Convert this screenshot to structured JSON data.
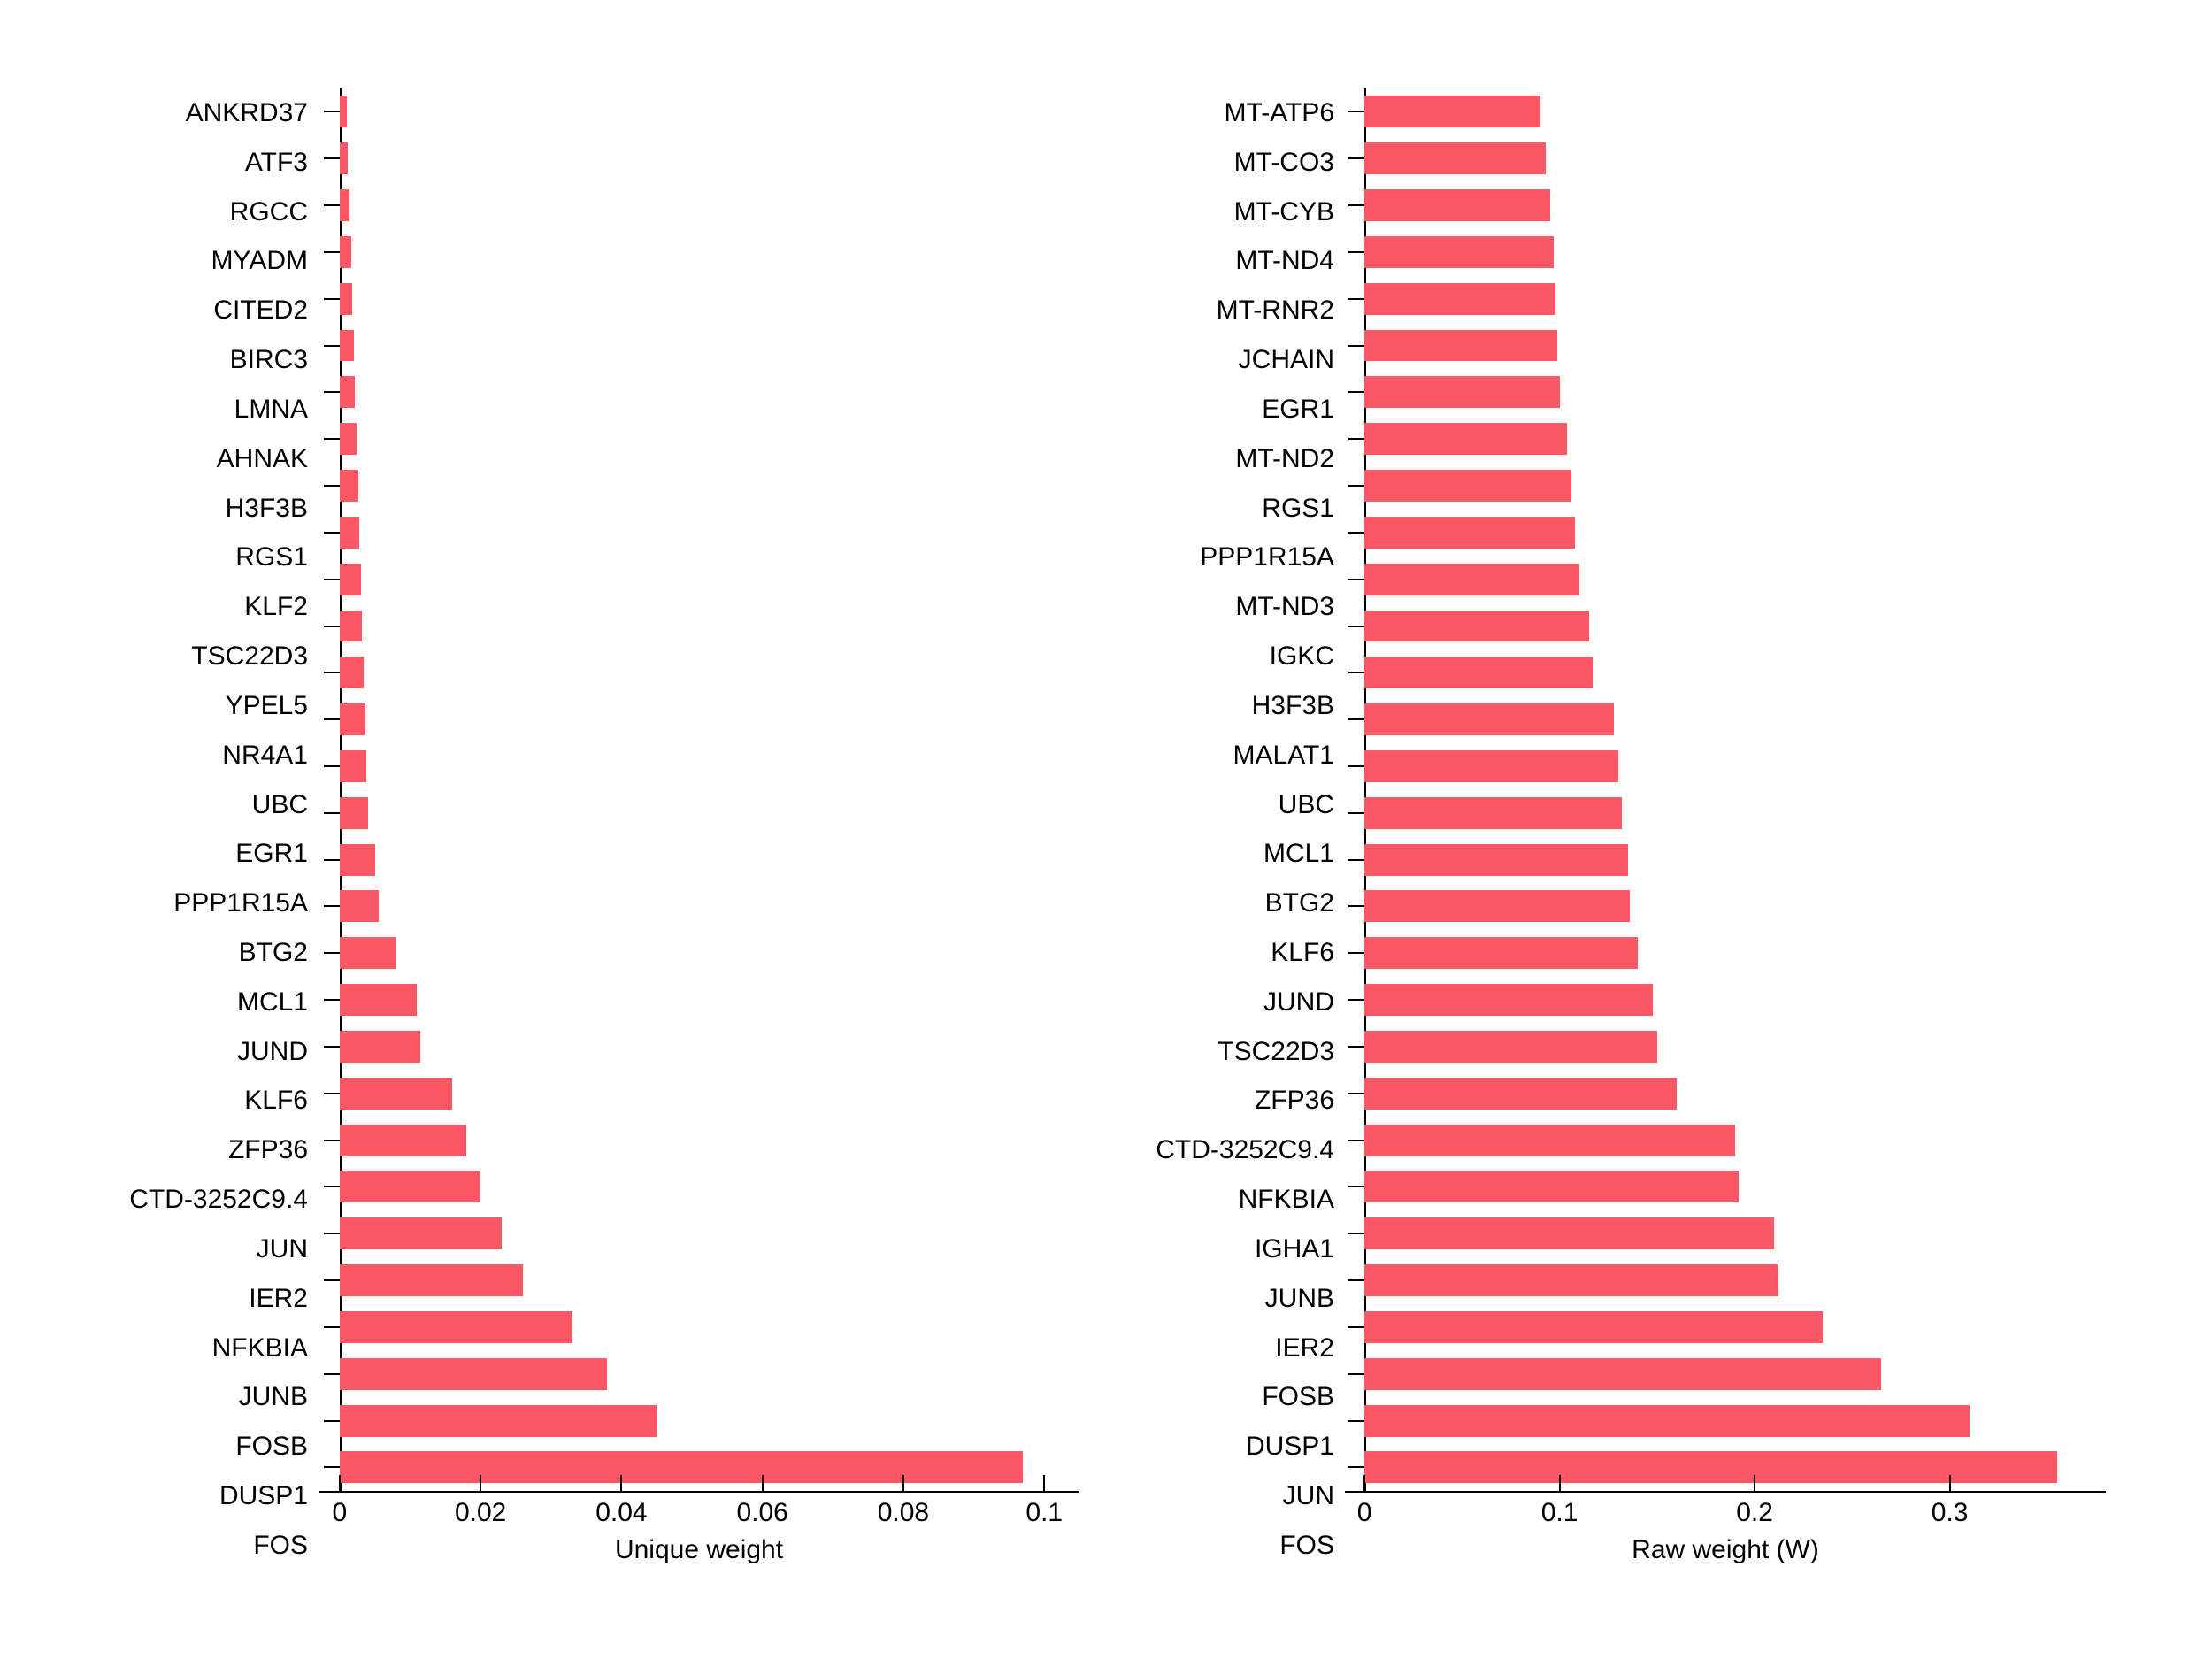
{
  "figure": {
    "background_color": "#ffffff",
    "bar_color": "#fa5864",
    "axis_color": "#000000",
    "tick_fontsize": 30,
    "label_fontsize": 30,
    "ylabel_width_left": 240,
    "ylabel_width_right": 240,
    "bar_height_ratio": 0.68
  },
  "left_chart": {
    "type": "bar-horizontal",
    "xlabel": "Unique weight",
    "xlim_min": -0.003,
    "xlim_max": 0.105,
    "xticks": [
      0,
      0.02,
      0.04,
      0.06,
      0.08,
      0.1
    ],
    "categories": [
      "ANKRD37",
      "ATF3",
      "RGCC",
      "MYADM",
      "CITED2",
      "BIRC3",
      "LMNA",
      "AHNAK",
      "H3F3B",
      "RGS1",
      "KLF2",
      "TSC22D3",
      "YPEL5",
      "NR4A1",
      "UBC",
      "EGR1",
      "PPP1R15A",
      "BTG2",
      "MCL1",
      "JUND",
      "KLF6",
      "ZFP36",
      "CTD-3252C9.4",
      "JUN",
      "IER2",
      "NFKBIA",
      "JUNB",
      "FOSB",
      "DUSP1",
      "FOS"
    ],
    "values": [
      0.001,
      0.0012,
      0.0014,
      0.0016,
      0.0018,
      0.002,
      0.0022,
      0.0024,
      0.0026,
      0.0028,
      0.003,
      0.0032,
      0.0034,
      0.0036,
      0.0038,
      0.004,
      0.005,
      0.0055,
      0.008,
      0.011,
      0.0115,
      0.016,
      0.018,
      0.02,
      0.023,
      0.026,
      0.033,
      0.038,
      0.045,
      0.097
    ]
  },
  "right_chart": {
    "type": "bar-horizontal",
    "xlabel": "Raw weight (W)",
    "xlim_min": -0.01,
    "xlim_max": 0.38,
    "xticks": [
      0,
      0.1,
      0.2,
      0.3
    ],
    "categories": [
      "MT-ATP6",
      "MT-CO3",
      "MT-CYB",
      "MT-ND4",
      "MT-RNR2",
      "JCHAIN",
      "EGR1",
      "MT-ND2",
      "RGS1",
      "PPP1R15A",
      "MT-ND3",
      "IGKC",
      "H3F3B",
      "MALAT1",
      "UBC",
      "MCL1",
      "BTG2",
      "KLF6",
      "JUND",
      "TSC22D3",
      "ZFP36",
      "CTD-3252C9.4",
      "NFKBIA",
      "IGHA1",
      "JUNB",
      "IER2",
      "FOSB",
      "DUSP1",
      "JUN",
      "FOS"
    ],
    "values": [
      0.09,
      0.093,
      0.095,
      0.097,
      0.098,
      0.099,
      0.1,
      0.104,
      0.106,
      0.108,
      0.11,
      0.115,
      0.117,
      0.128,
      0.13,
      0.132,
      0.135,
      0.136,
      0.14,
      0.148,
      0.15,
      0.16,
      0.19,
      0.192,
      0.21,
      0.212,
      0.235,
      0.265,
      0.31,
      0.355
    ]
  }
}
